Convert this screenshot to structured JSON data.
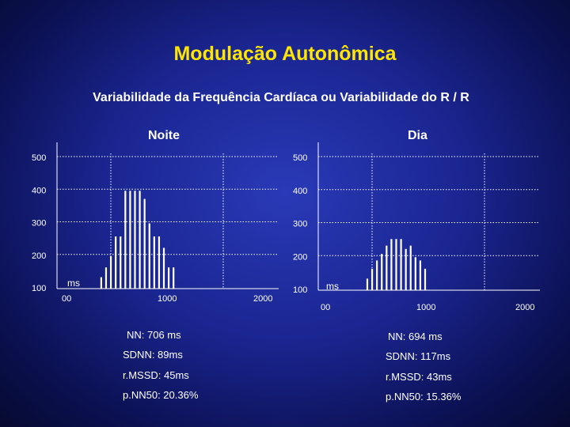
{
  "title": "Modulação Autonômica",
  "subtitle": "Variabilidade da Frequência Cardíaca ou Variabilidade do R / R",
  "chart_data": [
    {
      "type": "bar",
      "title": "Noite",
      "xlabel": "ms",
      "x_ticks": [
        "00",
        "1000",
        "2000"
      ],
      "y_ticks": [
        "100",
        "200",
        "300",
        "400",
        "500"
      ],
      "ylim": [
        100,
        500
      ],
      "grid": true,
      "x": [
        450,
        500,
        550,
        600,
        650,
        700,
        750,
        800,
        850,
        900,
        950,
        1000,
        1050,
        1100,
        1150,
        1200
      ],
      "values": [
        135,
        165,
        200,
        260,
        260,
        400,
        400,
        400,
        400,
        375,
        300,
        260,
        260,
        225,
        165,
        165
      ],
      "stats": [
        "NN: 706 ms",
        "SDNN: 89ms",
        "r.MSSD: 45ms",
        "p.NN50: 20.36%"
      ]
    },
    {
      "type": "bar",
      "title": "Dia",
      "xlabel": "ms",
      "x_ticks": [
        "00",
        "1000",
        "2000"
      ],
      "y_ticks": [
        "100",
        "200",
        "300",
        "400",
        "500"
      ],
      "ylim": [
        100,
        500
      ],
      "grid": true,
      "x": [
        500,
        550,
        600,
        650,
        700,
        750,
        800,
        850,
        900,
        950,
        1000,
        1050,
        1100
      ],
      "values": [
        135,
        165,
        190,
        210,
        235,
        255,
        255,
        255,
        225,
        235,
        200,
        190,
        165
      ],
      "stats": [
        "NN: 694 ms",
        "SDNN: 117ms",
        "r.MSSD: 43ms",
        "p.NN50: 15.36%"
      ]
    }
  ]
}
